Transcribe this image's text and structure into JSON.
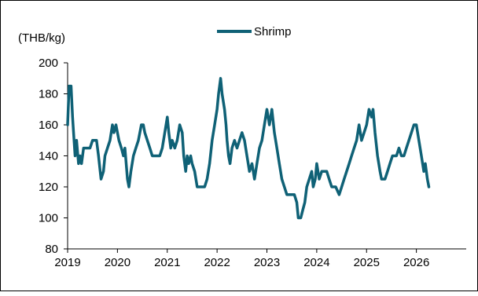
{
  "chart_data": {
    "type": "line",
    "title": "",
    "xlabel": "",
    "ylabel": "(THB/kg)",
    "ylim": [
      80,
      200
    ],
    "yticks": [
      80,
      100,
      120,
      140,
      160,
      180,
      200
    ],
    "xlim": [
      2019,
      2027
    ],
    "xticks": [
      "2019",
      "2020",
      "2021",
      "2022",
      "2023",
      "2024",
      "2025",
      "2026"
    ],
    "grid": false,
    "legend_position": "top-center",
    "series": [
      {
        "name": "Shrimp",
        "color": "#0f6176",
        "points": [
          [
            2019.0,
            160
          ],
          [
            2019.03,
            185
          ],
          [
            2019.07,
            185
          ],
          [
            2019.1,
            165
          ],
          [
            2019.13,
            150
          ],
          [
            2019.15,
            140
          ],
          [
            2019.18,
            150
          ],
          [
            2019.22,
            135
          ],
          [
            2019.25,
            140
          ],
          [
            2019.28,
            135
          ],
          [
            2019.32,
            145
          ],
          [
            2019.38,
            145
          ],
          [
            2019.45,
            145
          ],
          [
            2019.5,
            150
          ],
          [
            2019.58,
            150
          ],
          [
            2019.62,
            140
          ],
          [
            2019.67,
            125
          ],
          [
            2019.72,
            130
          ],
          [
            2019.75,
            140
          ],
          [
            2019.8,
            145
          ],
          [
            2019.85,
            150
          ],
          [
            2019.9,
            160
          ],
          [
            2019.93,
            155
          ],
          [
            2019.97,
            160
          ],
          [
            2020.0,
            155
          ],
          [
            2020.03,
            150
          ],
          [
            2020.08,
            145
          ],
          [
            2020.12,
            140
          ],
          [
            2020.15,
            145
          ],
          [
            2020.2,
            125
          ],
          [
            2020.23,
            120
          ],
          [
            2020.27,
            130
          ],
          [
            2020.32,
            140
          ],
          [
            2020.37,
            145
          ],
          [
            2020.42,
            150
          ],
          [
            2020.45,
            155
          ],
          [
            2020.48,
            160
          ],
          [
            2020.52,
            160
          ],
          [
            2020.55,
            155
          ],
          [
            2020.6,
            150
          ],
          [
            2020.65,
            145
          ],
          [
            2020.7,
            140
          ],
          [
            2020.78,
            140
          ],
          [
            2020.85,
            140
          ],
          [
            2020.9,
            145
          ],
          [
            2020.95,
            155
          ],
          [
            2021.0,
            165
          ],
          [
            2021.03,
            155
          ],
          [
            2021.07,
            145
          ],
          [
            2021.1,
            150
          ],
          [
            2021.15,
            145
          ],
          [
            2021.2,
            150
          ],
          [
            2021.25,
            160
          ],
          [
            2021.3,
            155
          ],
          [
            2021.33,
            140
          ],
          [
            2021.37,
            130
          ],
          [
            2021.4,
            140
          ],
          [
            2021.43,
            135
          ],
          [
            2021.47,
            140
          ],
          [
            2021.5,
            135
          ],
          [
            2021.55,
            130
          ],
          [
            2021.6,
            120
          ],
          [
            2021.68,
            120
          ],
          [
            2021.75,
            120
          ],
          [
            2021.8,
            125
          ],
          [
            2021.85,
            135
          ],
          [
            2021.9,
            150
          ],
          [
            2021.95,
            160
          ],
          [
            2022.0,
            170
          ],
          [
            2022.03,
            180
          ],
          [
            2022.07,
            190
          ],
          [
            2022.1,
            180
          ],
          [
            2022.15,
            170
          ],
          [
            2022.18,
            160
          ],
          [
            2022.2,
            150
          ],
          [
            2022.23,
            140
          ],
          [
            2022.26,
            135
          ],
          [
            2022.3,
            145
          ],
          [
            2022.35,
            150
          ],
          [
            2022.4,
            145
          ],
          [
            2022.45,
            150
          ],
          [
            2022.5,
            155
          ],
          [
            2022.55,
            150
          ],
          [
            2022.6,
            140
          ],
          [
            2022.65,
            130
          ],
          [
            2022.7,
            135
          ],
          [
            2022.75,
            125
          ],
          [
            2022.8,
            135
          ],
          [
            2022.85,
            145
          ],
          [
            2022.9,
            150
          ],
          [
            2022.95,
            160
          ],
          [
            2023.0,
            170
          ],
          [
            2023.05,
            160
          ],
          [
            2023.1,
            170
          ],
          [
            2023.15,
            155
          ],
          [
            2023.2,
            145
          ],
          [
            2023.25,
            135
          ],
          [
            2023.3,
            125
          ],
          [
            2023.35,
            120
          ],
          [
            2023.4,
            115
          ],
          [
            2023.48,
            115
          ],
          [
            2023.55,
            115
          ],
          [
            2023.6,
            110
          ],
          [
            2023.63,
            100
          ],
          [
            2023.68,
            100
          ],
          [
            2023.72,
            105
          ],
          [
            2023.76,
            110
          ],
          [
            2023.8,
            120
          ],
          [
            2023.85,
            125
          ],
          [
            2023.9,
            130
          ],
          [
            2023.93,
            120
          ],
          [
            2023.97,
            125
          ],
          [
            2024.0,
            135
          ],
          [
            2024.05,
            125
          ],
          [
            2024.1,
            130
          ],
          [
            2024.15,
            130
          ],
          [
            2024.2,
            130
          ],
          [
            2024.25,
            125
          ],
          [
            2024.3,
            120
          ],
          [
            2024.38,
            120
          ],
          [
            2024.45,
            115
          ],
          [
            2024.5,
            120
          ],
          [
            2024.55,
            125
          ],
          [
            2024.6,
            130
          ],
          [
            2024.65,
            135
          ],
          [
            2024.7,
            140
          ],
          [
            2024.75,
            145
          ],
          [
            2024.8,
            150
          ],
          [
            2024.85,
            160
          ],
          [
            2024.9,
            150
          ],
          [
            2024.95,
            155
          ],
          [
            2025.0,
            160
          ],
          [
            2025.05,
            170
          ],
          [
            2025.1,
            165
          ],
          [
            2025.13,
            170
          ],
          [
            2025.17,
            155
          ],
          [
            2025.22,
            140
          ],
          [
            2025.27,
            130
          ],
          [
            2025.3,
            125
          ],
          [
            2025.37,
            125
          ],
          [
            2025.42,
            130
          ],
          [
            2025.47,
            135
          ],
          [
            2025.52,
            140
          ],
          [
            2025.6,
            140
          ],
          [
            2025.65,
            145
          ],
          [
            2025.7,
            140
          ],
          [
            2025.75,
            140
          ],
          [
            2025.8,
            145
          ],
          [
            2025.85,
            150
          ],
          [
            2025.9,
            155
          ],
          [
            2025.95,
            160
          ],
          [
            2026.0,
            160
          ],
          [
            2026.05,
            150
          ],
          [
            2026.1,
            140
          ],
          [
            2026.15,
            130
          ],
          [
            2026.18,
            135
          ],
          [
            2026.22,
            125
          ],
          [
            2026.25,
            120
          ]
        ]
      }
    ]
  }
}
